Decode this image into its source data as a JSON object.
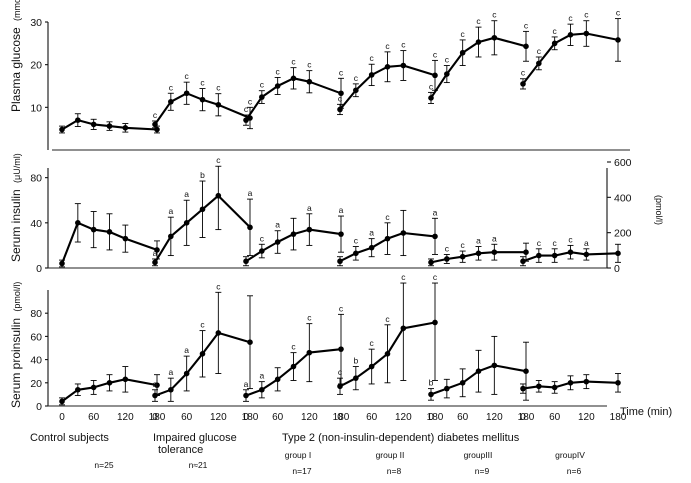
{
  "chart_data": {
    "type": "line",
    "x": [
      0,
      30,
      60,
      90,
      120,
      180
    ],
    "x_tick_labels": [
      "0",
      "60",
      "120",
      "180"
    ],
    "xlabel": "Time (min)",
    "xlim": [
      0,
      180
    ],
    "groups": [
      {
        "key": "control",
        "label": "Control subjects",
        "label2": "",
        "sub": "",
        "n": "n=25"
      },
      {
        "key": "igt",
        "label": "Impaired glucose",
        "label2": "tolerance",
        "sub": "",
        "n": "n≈21"
      },
      {
        "key": "g1",
        "label": "",
        "label2": "",
        "sub": "group I",
        "n": "n=17"
      },
      {
        "key": "g2",
        "label": "",
        "label2": "",
        "sub": "group II",
        "n": "n=8"
      },
      {
        "key": "g3",
        "label": "",
        "label2": "",
        "sub": "groupIII",
        "n": "n=9"
      },
      {
        "key": "g4",
        "label": "",
        "label2": "",
        "sub": "groupIV",
        "n": "n=6"
      }
    ],
    "diabetes_label": "Type 2 (non-insulin-dependent) diabetes mellitus",
    "panels": [
      {
        "key": "glucose",
        "ylabel": "Plasma glucose",
        "ylabel_unit": "(mmol/l)",
        "ylim": [
          0,
          30
        ],
        "yticks": [
          10,
          20,
          30
        ],
        "series": [
          {
            "group": "control",
            "values": [
              4.8,
              7.0,
              6.0,
              5.6,
              5.2,
              4.8
            ],
            "err": [
              0.8,
              1.5,
              1.2,
              1.0,
              1.0,
              0.8
            ],
            "sig": [
              "",
              "",
              "",
              "",
              "",
              ""
            ]
          },
          {
            "group": "igt",
            "values": [
              6.0,
              11.3,
              13.3,
              11.8,
              10.6,
              7.5
            ],
            "err": [
              0.8,
              2.0,
              2.6,
              2.6,
              2.6,
              2.5
            ],
            "sig": [
              "c",
              "c",
              "c",
              "c",
              "c",
              "c"
            ]
          },
          {
            "group": "g1",
            "values": [
              7.0,
              12.4,
              15.0,
              16.8,
              16.0,
              13.3
            ],
            "err": [
              1.2,
              1.5,
              2.0,
              2.5,
              2.6,
              3.5
            ],
            "sig": [
              "c",
              "c",
              "c",
              "c",
              "c",
              "c"
            ]
          },
          {
            "group": "g2",
            "values": [
              9.5,
              14.0,
              17.6,
              19.5,
              19.8,
              17.5
            ],
            "err": [
              1.2,
              1.5,
              2.5,
              3.5,
              3.5,
              3.5
            ],
            "sig": [
              "c",
              "c",
              "c",
              "c",
              "c",
              "c"
            ]
          },
          {
            "group": "g3",
            "values": [
              12.2,
              17.8,
              22.8,
              25.3,
              26.3,
              24.3
            ],
            "err": [
              1.3,
              2.0,
              3.0,
              3.5,
              4.0,
              3.5
            ],
            "sig": [
              "c",
              "c",
              "c",
              "c",
              "c",
              "c"
            ]
          },
          {
            "group": "g4",
            "values": [
              15.5,
              20.3,
              25.0,
              27.0,
              27.3,
              25.8
            ],
            "err": [
              1.2,
              1.5,
              1.5,
              2.5,
              3.0,
              5.0
            ],
            "sig": [
              "c",
              "c",
              "c",
              "c",
              "c",
              "c"
            ]
          }
        ]
      },
      {
        "key": "insulin",
        "ylabel": "Serum insulin",
        "ylabel_unit": "(μU/ml)",
        "ylim": [
          0,
          85
        ],
        "yticks": [
          0,
          40,
          80
        ],
        "right_axis_label": "(pmol/l)",
        "right_ylim": [
          0,
          600
        ],
        "right_yticks": [
          0,
          200,
          400,
          600
        ],
        "series": [
          {
            "group": "control",
            "values": [
              4,
              40,
              34,
              32,
              26,
              16
            ],
            "err": [
              3,
              17,
              16,
              16,
              12,
              8
            ],
            "sig": [
              "",
              "",
              "",
              "",
              "",
              ""
            ]
          },
          {
            "group": "igt",
            "values": [
              5,
              28,
              40,
              52,
              64,
              36
            ],
            "err": [
              3,
              17,
              20,
              25,
              30,
              25
            ],
            "sig": [
              "a",
              "a",
              "a",
              "b",
              "c",
              "a"
            ]
          },
          {
            "group": "g1",
            "values": [
              6,
              15,
              23,
              30,
              34,
              30
            ],
            "err": [
              4,
              6,
              10,
              14,
              14,
              16
            ],
            "sig": [
              "",
              "c",
              "a",
              "",
              "a",
              "a"
            ]
          },
          {
            "group": "g2",
            "values": [
              6,
              13,
              18,
              26,
              31,
              28
            ],
            "err": [
              4,
              6,
              8,
              14,
              20,
              16
            ],
            "sig": [
              "",
              "c",
              "a",
              "c",
              "",
              "a"
            ]
          },
          {
            "group": "g3",
            "values": [
              5,
              8,
              10,
              13,
              14,
              14
            ],
            "err": [
              3,
              4,
              5,
              6,
              7,
              8
            ],
            "sig": [
              "",
              "c",
              "c",
              "a",
              "a",
              ""
            ]
          },
          {
            "group": "g4",
            "values": [
              6,
              11,
              11,
              14,
              12,
              13
            ],
            "err": [
              4,
              6,
              6,
              6,
              5,
              8
            ],
            "sig": [
              "",
              "c",
              "c",
              "c",
              "a",
              ""
            ]
          }
        ]
      },
      {
        "key": "proinsulin",
        "ylabel": "Serum proinsulin",
        "ylabel_unit": "(pmol/l)",
        "ylim": [
          0,
          100
        ],
        "yticks": [
          0,
          20,
          40,
          60,
          80
        ],
        "series": [
          {
            "group": "control",
            "values": [
              4,
              14,
              16,
              20,
              23,
              18
            ],
            "err": [
              3,
              5,
              6,
              7,
              11,
              9
            ],
            "sig": [
              "",
              "",
              "",
              "",
              "",
              ""
            ]
          },
          {
            "group": "igt",
            "values": [
              9,
              14,
              28,
              45,
              63,
              55
            ],
            "err": [
              5,
              10,
              15,
              20,
              35,
              40
            ],
            "sig": [
              "a",
              "a",
              "a",
              "c",
              "c",
              ""
            ]
          },
          {
            "group": "g1",
            "values": [
              9,
              14,
              23,
              34,
              46,
              49
            ],
            "err": [
              5,
              7,
              10,
              12,
              25,
              30
            ],
            "sig": [
              "a",
              "a",
              "",
              "c",
              "c",
              "c"
            ]
          },
          {
            "group": "g2",
            "values": [
              17,
              24,
              34,
              45,
              67,
              72
            ],
            "err": [
              7,
              10,
              15,
              25,
              45,
              50
            ],
            "sig": [
              "c",
              "b",
              "c",
              "c",
              "c",
              "c"
            ]
          },
          {
            "group": "g3",
            "values": [
              10,
              15,
              20,
              30,
              35,
              30
            ],
            "err": [
              5,
              8,
              12,
              18,
              25,
              25
            ],
            "sig": [
              "b",
              "",
              "",
              "",
              "",
              ""
            ]
          },
          {
            "group": "g4",
            "values": [
              15,
              17,
              16,
              20,
              21,
              20
            ],
            "err": [
              4,
              5,
              5,
              6,
              6,
              8
            ],
            "sig": [
              "",
              "",
              "",
              "",
              "",
              ""
            ]
          }
        ]
      }
    ]
  }
}
